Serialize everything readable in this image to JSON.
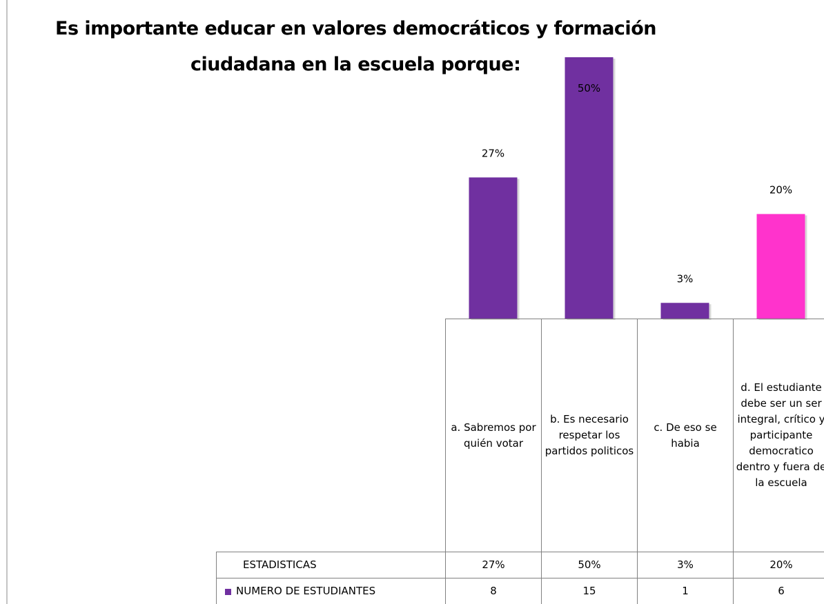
{
  "chart_data": {
    "type": "bar",
    "title_lines": [
      "Es importante educar en valores democráticos y formación",
      "ciudadana en la escuela porque:"
    ],
    "categories": [
      "a. Sabremos por quién votar",
      "b. Es necesario respetar los partidos politicos",
      "c. De eso se habia",
      "d. El estudiante debe ser un ser integral, crítico y participante democratico dentro y fuera de la escuela"
    ],
    "values": [
      27,
      50,
      3,
      20
    ],
    "value_labels": [
      "27%",
      "50%",
      "3%",
      "20%"
    ],
    "colors": [
      "#7030a0",
      "#7030a0",
      "#7030a0",
      "#ff33cc"
    ],
    "ylim": [
      0,
      50
    ],
    "table_rows": [
      {
        "name": "ESTADISTICAS"
      },
      {
        "name": "NUMERO DE ESTUDIANTES",
        "color": "#7030a0",
        "values": [
          8,
          15,
          1,
          6
        ]
      }
    ]
  }
}
